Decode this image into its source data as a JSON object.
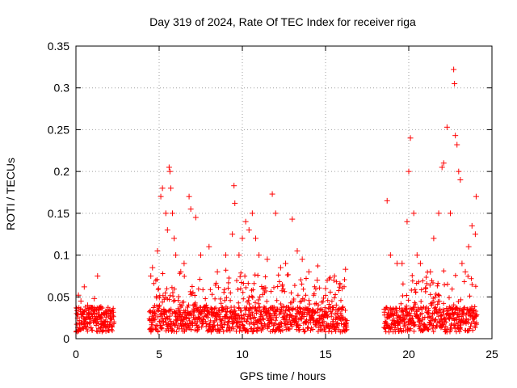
{
  "chart_data": {
    "type": "scatter",
    "title": "Day 319 of 2024, Rate Of TEC Index for receiver riga",
    "xlabel": "GPS time / hours",
    "ylabel": "ROTI / TECUs",
    "xlim": [
      0,
      25
    ],
    "ylim": [
      0,
      0.35
    ],
    "xticks": [
      0,
      5,
      10,
      15,
      20,
      25
    ],
    "yticks": [
      0,
      0.05,
      0.1,
      0.15,
      0.2,
      0.25,
      0.3,
      0.35
    ],
    "xtick_labels": [
      "0",
      "5",
      "10",
      "15",
      "20",
      "25"
    ],
    "ytick_labels": [
      "0",
      "0.05",
      "0.1",
      "0.15",
      "0.2",
      "0.25",
      "0.3",
      "0.35"
    ],
    "grid": true,
    "marker": "+",
    "marker_color": "#ff0000",
    "data_gaps_hours": [
      [
        2.3,
        4.4
      ],
      [
        16.3,
        18.5
      ]
    ],
    "series": [
      {
        "name": "ROTI",
        "points": [
          [
            0.05,
            0.03
          ],
          [
            0.15,
            0.052
          ],
          [
            0.3,
            0.045
          ],
          [
            0.5,
            0.062
          ],
          [
            0.7,
            0.04
          ],
          [
            0.9,
            0.035
          ],
          [
            1.1,
            0.048
          ],
          [
            1.3,
            0.075
          ],
          [
            1.5,
            0.038
          ],
          [
            1.8,
            0.032
          ],
          [
            2.1,
            0.03
          ],
          [
            4.5,
            0.075
          ],
          [
            4.6,
            0.085
          ],
          [
            4.9,
            0.105
          ],
          [
            5.1,
            0.17
          ],
          [
            5.2,
            0.18
          ],
          [
            5.4,
            0.15
          ],
          [
            5.5,
            0.13
          ],
          [
            5.6,
            0.205
          ],
          [
            5.65,
            0.2
          ],
          [
            5.7,
            0.18
          ],
          [
            5.8,
            0.15
          ],
          [
            5.9,
            0.12
          ],
          [
            6.0,
            0.1
          ],
          [
            6.3,
            0.08
          ],
          [
            6.5,
            0.09
          ],
          [
            6.8,
            0.17
          ],
          [
            6.9,
            0.155
          ],
          [
            7.2,
            0.145
          ],
          [
            7.5,
            0.1
          ],
          [
            8.0,
            0.11
          ],
          [
            8.5,
            0.08
          ],
          [
            9.0,
            0.1
          ],
          [
            9.4,
            0.125
          ],
          [
            9.5,
            0.183
          ],
          [
            9.55,
            0.162
          ],
          [
            9.8,
            0.1
          ],
          [
            10.0,
            0.12
          ],
          [
            10.2,
            0.14
          ],
          [
            10.4,
            0.13
          ],
          [
            10.6,
            0.15
          ],
          [
            10.8,
            0.12
          ],
          [
            11.0,
            0.1
          ],
          [
            11.5,
            0.095
          ],
          [
            11.8,
            0.173
          ],
          [
            12.0,
            0.15
          ],
          [
            12.3,
            0.085
          ],
          [
            12.6,
            0.09
          ],
          [
            13.0,
            0.143
          ],
          [
            13.3,
            0.105
          ],
          [
            13.6,
            0.095
          ],
          [
            14.0,
            0.08
          ],
          [
            14.5,
            0.07
          ],
          [
            15.0,
            0.06
          ],
          [
            15.5,
            0.07
          ],
          [
            16.0,
            0.06
          ],
          [
            16.2,
            0.083
          ],
          [
            18.7,
            0.165
          ],
          [
            18.9,
            0.1
          ],
          [
            19.3,
            0.09
          ],
          [
            19.6,
            0.09
          ],
          [
            19.9,
            0.14
          ],
          [
            20.0,
            0.2
          ],
          [
            20.1,
            0.24
          ],
          [
            20.3,
            0.15
          ],
          [
            20.5,
            0.1
          ],
          [
            20.7,
            0.09
          ],
          [
            21.0,
            0.06
          ],
          [
            21.3,
            0.08
          ],
          [
            21.5,
            0.12
          ],
          [
            21.8,
            0.15
          ],
          [
            22.0,
            0.205
          ],
          [
            22.1,
            0.21
          ],
          [
            22.3,
            0.253
          ],
          [
            22.5,
            0.15
          ],
          [
            22.7,
            0.322
          ],
          [
            22.75,
            0.305
          ],
          [
            22.8,
            0.243
          ],
          [
            22.9,
            0.232
          ],
          [
            23.0,
            0.2
          ],
          [
            23.1,
            0.19
          ],
          [
            23.2,
            0.09
          ],
          [
            23.4,
            0.08
          ],
          [
            23.6,
            0.11
          ],
          [
            23.8,
            0.135
          ],
          [
            24.0,
            0.125
          ],
          [
            24.05,
            0.17
          ]
        ]
      }
    ]
  }
}
